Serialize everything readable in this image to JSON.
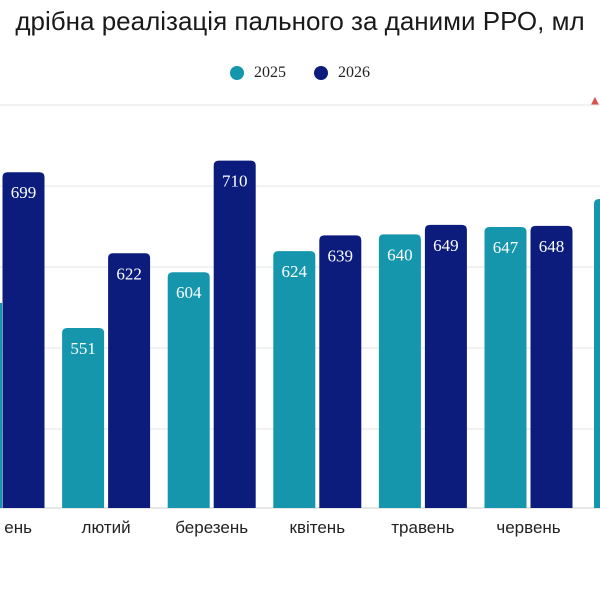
{
  "title": "дрібна реалізація пального за даними РРО, мл",
  "chart_data": {
    "type": "bar",
    "categories": [
      "ень",
      "лютий",
      "березень",
      "квітень",
      "травень",
      "червень",
      ""
    ],
    "series": [
      {
        "name": "2025",
        "color": "#1596ad",
        "values": [
          null,
          551,
          604,
          624,
          640,
          647,
          null
        ]
      },
      {
        "name": "2026",
        "color": "#0c1c7c",
        "values": [
          699,
          622,
          710,
          639,
          649,
          648,
          null
        ]
      }
    ],
    "ylim": [
      380,
      760
    ],
    "grid": true,
    "legend": "top-center"
  },
  "logo": {
    "name": "brand-logo-icon"
  }
}
